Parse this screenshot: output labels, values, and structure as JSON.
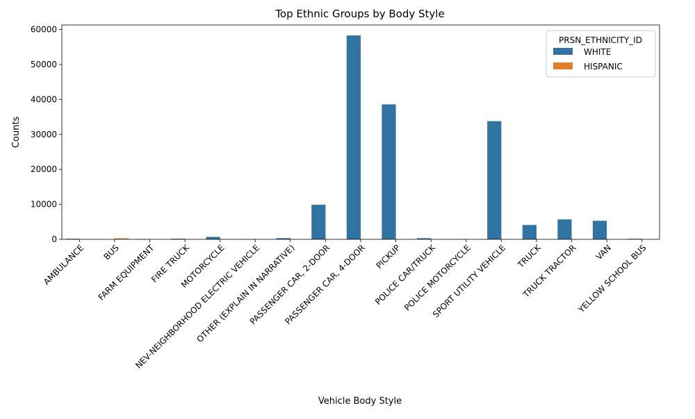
{
  "chart_data": {
    "type": "bar",
    "title": "Top Ethnic Groups by Body Style",
    "xlabel": "Vehicle Body Style",
    "ylabel": "Counts",
    "ylim": [
      0,
      61300
    ],
    "yticks": [
      0,
      10000,
      20000,
      30000,
      40000,
      50000,
      60000
    ],
    "grid": false,
    "legend": {
      "title": "PRSN_ETHNICITY_ID",
      "placement": "top-right",
      "entries": [
        "WHITE",
        "HISPANIC"
      ]
    },
    "categories": [
      "AMBULANCE",
      "BUS",
      "FARM EQUIPMENT",
      "FIRE TRUCK",
      "MOTORCYCLE",
      "NEV-NEIGHBORHOOD ELECTRIC VEHICLE",
      "OTHER  (EXPLAIN IN NARRATIVE)",
      "PASSENGER CAR, 2-DOOR",
      "PASSENGER CAR, 4-DOOR",
      "PICKUP",
      "POLICE CAR/TRUCK",
      "POLICE MOTORCYCLE",
      "SPORT UTILITY VEHICLE",
      "TRUCK",
      "TRUCK TRACTOR",
      "VAN",
      "YELLOW SCHOOL BUS"
    ],
    "series": [
      {
        "name": "WHITE",
        "color": "#3274a1",
        "values": [
          170,
          0,
          40,
          180,
          700,
          20,
          350,
          9900,
          58300,
          38600,
          330,
          10,
          33800,
          4100,
          5700,
          5300,
          160
        ]
      },
      {
        "name": "HISPANIC",
        "color": "#e1812c",
        "values": [
          0,
          300,
          0,
          0,
          0,
          0,
          0,
          0,
          0,
          0,
          0,
          0,
          0,
          0,
          0,
          0,
          0
        ]
      }
    ]
  }
}
